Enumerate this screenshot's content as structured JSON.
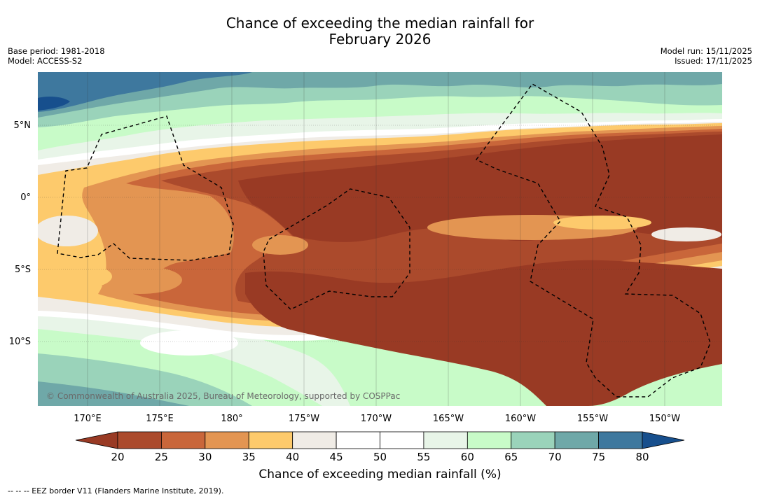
{
  "title": {
    "line1": "Chance of exceeding the median rainfall for",
    "line2": "February 2026"
  },
  "meta": {
    "base_period": "Base period: 1981-2018",
    "model": "Model: ACCESS-S2",
    "model_run": "Model run: 15/11/2025",
    "issued": "Issued: 17/11/2025"
  },
  "axes": {
    "lon_ticks": [
      "170°E",
      "175°E",
      "180°",
      "175°W",
      "170°W",
      "165°W",
      "160°W",
      "155°W",
      "150°W"
    ],
    "lat_ticks": [
      "5°N",
      "0°",
      "5°S",
      "10°S"
    ]
  },
  "copyright": "© Commonwealth of Australia 2025, Bureau of Meteorology, supported by COSPPac",
  "colorbar": {
    "title": "Chance of exceeding median rainfall (%)",
    "ticks": [
      "20",
      "25",
      "30",
      "35",
      "40",
      "45",
      "50",
      "55",
      "60",
      "65",
      "70",
      "75",
      "80"
    ],
    "colors": [
      "#ab4a2c",
      "#c9663a",
      "#e39552",
      "#fdca6c",
      "#f0ece6",
      "#ffffff",
      "#ffffff",
      "#e8f5e8",
      "#c8fbc8",
      "#9ad3ba",
      "#6fa8a8",
      "#3e789e"
    ],
    "under_color": "#993a24",
    "over_color": "#174f8d"
  },
  "footnote": "--  --  -- EEZ border V11 (Flanders Marine Institute, 2019)."
}
